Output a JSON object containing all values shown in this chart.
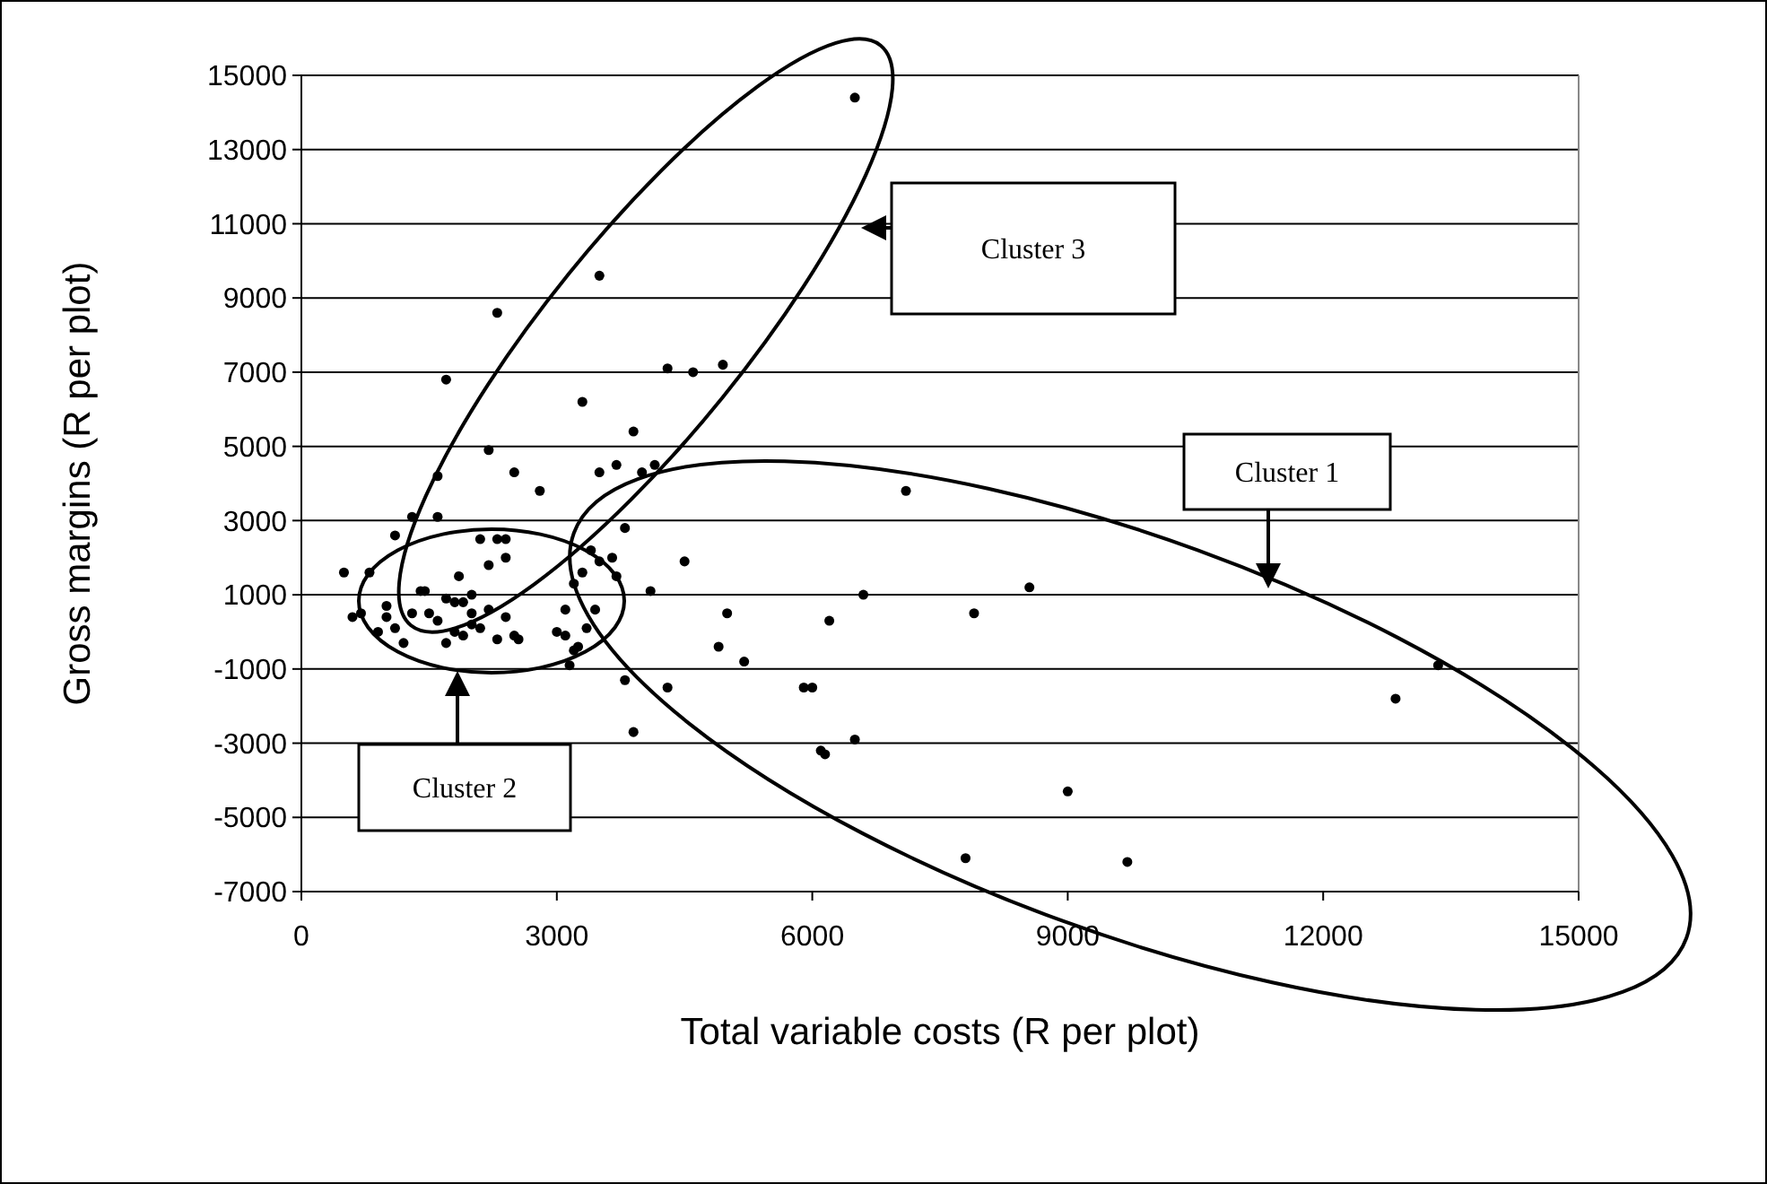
{
  "chart_data": {
    "type": "scatter",
    "xlabel": "Total variable costs (R per plot)",
    "ylabel": "Gross margins (R per plot)",
    "xlim": [
      0,
      15000
    ],
    "xticks": [
      0,
      3000,
      6000,
      9000,
      12000,
      15000
    ],
    "ylim": [
      -7000,
      15000
    ],
    "yticks": [
      -7000,
      -5000,
      -3000,
      -1000,
      1000,
      3000,
      5000,
      7000,
      9000,
      11000,
      13000,
      15000
    ],
    "grid": "y",
    "marker": "circle",
    "x": [
      6500,
      3500,
      2300,
      1700,
      4300,
      4600,
      4950,
      3300,
      3900,
      2200,
      1600,
      2500,
      3700,
      4000,
      3500,
      4150,
      2800,
      1600,
      1300,
      500,
      800,
      1100,
      1400,
      1450,
      1700,
      1800,
      2000,
      1900,
      2100,
      2300,
      2400,
      2200,
      2400,
      2000,
      1000,
      700,
      600,
      900,
      1000,
      1100,
      1200,
      1300,
      1600,
      1500,
      1800,
      2000,
      2100,
      2200,
      2300,
      2500,
      2550,
      1700,
      1900,
      2400,
      1850,
      3000,
      3100,
      3200,
      3150,
      3250,
      3100,
      3200,
      3300,
      3500,
      3700,
      3650,
      3800,
      3400,
      3800,
      3900,
      4100,
      4300,
      4500,
      3450,
      3350,
      7100,
      6600,
      6200,
      7900,
      8550,
      5000,
      5200,
      4900,
      5900,
      6000,
      6100,
      6150,
      6500,
      9000,
      7800,
      9700,
      12850,
      13350
    ],
    "values": [
      14400,
      9600,
      8600,
      6800,
      7100,
      7000,
      7200,
      6200,
      5400,
      4900,
      4200,
      4300,
      4500,
      4300,
      4300,
      4500,
      3800,
      3100,
      3100,
      1600,
      1600,
      2600,
      1100,
      1100,
      900,
      800,
      1000,
      800,
      2500,
      2500,
      2500,
      1800,
      2000,
      500,
      700,
      500,
      400,
      0,
      400,
      100,
      -300,
      500,
      300,
      500,
      0,
      200,
      100,
      600,
      -200,
      -100,
      -200,
      -300,
      -100,
      400,
      1500,
      0,
      -100,
      -500,
      -900,
      -400,
      600,
      1300,
      1600,
      1900,
      1500,
      2000,
      2800,
      2200,
      -1300,
      -2700,
      1100,
      -1500,
      1900,
      600,
      100,
      3800,
      1000,
      300,
      500,
      1200,
      500,
      -800,
      -400,
      -1500,
      -1500,
      -3200,
      -3300,
      -2900,
      -4300,
      -6100,
      -6200,
      -1800,
      -900
    ],
    "color": "#000000",
    "annotations": [
      "Cluster 1",
      "Cluster 2",
      "Cluster 3"
    ]
  }
}
